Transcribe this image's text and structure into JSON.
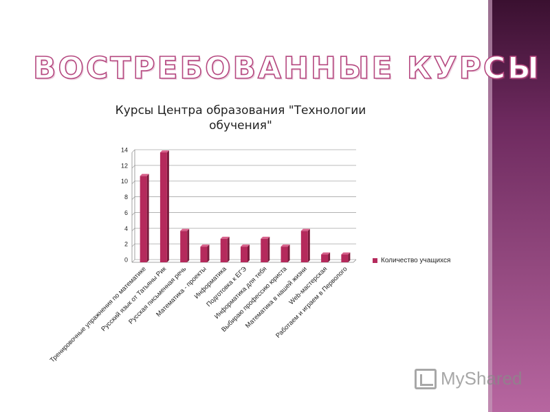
{
  "slide": {
    "title": "ВОСТРЕБОВАННЫЕ КУРСЫ"
  },
  "colors": {
    "bar": "#b52a5c",
    "bar_dark": "#7c1a3c",
    "bar_top": "#d8628c",
    "sidebar": "#6e2a5f"
  },
  "logo": {
    "text": "MyShared",
    "icon": "myshared-logo-icon"
  },
  "chart_data": {
    "type": "bar",
    "title": "Курсы Центра образования \"Технологии обучения\"",
    "xlabel": "",
    "ylabel": "",
    "ylim": [
      0,
      14
    ],
    "yticks": [
      0,
      2,
      4,
      6,
      8,
      10,
      12,
      14
    ],
    "grid": true,
    "legend_placement": "right",
    "categories": [
      "Тренировочные упражнения по математике",
      "Русский язык от Татьяны Рик",
      "Русская письменная речь",
      "Математика - проекты",
      "Информатика",
      "Подготовка к ЕГЭ",
      "Информатика для тебя",
      "Выбираю профессию юриста",
      "Математика в нашей жизни",
      "Web-мастерская",
      "Работаем и играем в Перволого"
    ],
    "series": [
      {
        "name": "Количество учащихся",
        "values": [
          11,
          14,
          4,
          2,
          3,
          2,
          3,
          2,
          4,
          1,
          1
        ]
      }
    ]
  }
}
